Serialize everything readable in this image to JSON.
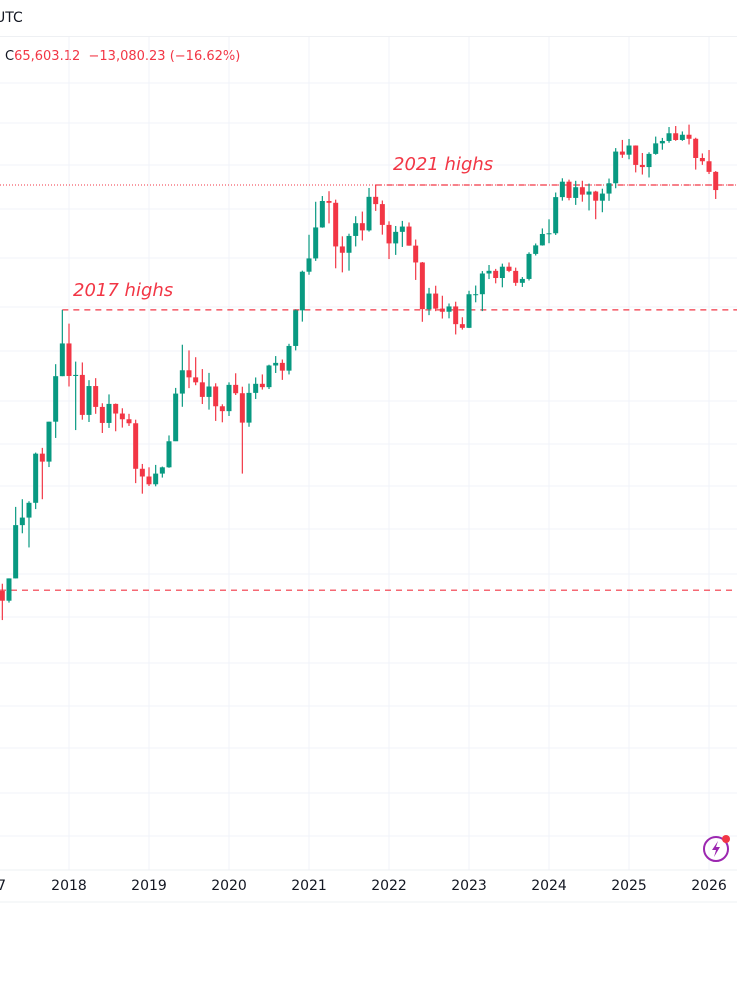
{
  "header": {
    "timezone": "UTC",
    "close_label": "C",
    "close_value": "65,603.12",
    "change": "−13,080.23",
    "change_pct": "(−16.62%)"
  },
  "colors": {
    "up": "#089981",
    "down": "#f23645",
    "annotation": "#f23645",
    "grid": "#f0f3fa",
    "icon": "#9c27b0"
  },
  "icons": {
    "bottom_right": "lightning-icon"
  },
  "chart_data": {
    "type": "candlestick",
    "interval": "monthly",
    "y_scale": "log",
    "grid": true,
    "x_tick_labels": [
      "7",
      "2018",
      "2019",
      "2020",
      "2021",
      "2022",
      "2023",
      "2024",
      "2025",
      "2026"
    ],
    "annotations": [
      {
        "text": "2017 highs",
        "level": 19800,
        "from": "2017-12"
      },
      {
        "text": "2021 highs",
        "level": 69000,
        "from": "2021-11"
      }
    ],
    "horizontal_lines": [
      {
        "level": 1200,
        "style": "dashed"
      },
      {
        "level": 69000,
        "style": "dotted"
      }
    ],
    "candles": [
      [
        "2017-03",
        1190,
        1280,
        890,
        1080
      ],
      [
        "2017-04",
        1080,
        1350,
        1060,
        1350
      ],
      [
        "2017-05",
        1350,
        2760,
        1350,
        2300
      ],
      [
        "2017-06",
        2300,
        2980,
        2120,
        2480
      ],
      [
        "2017-07",
        2480,
        2920,
        1840,
        2875
      ],
      [
        "2017-08",
        2875,
        4750,
        2700,
        4700
      ],
      [
        "2017-09",
        4700,
        4980,
        2980,
        4340
      ],
      [
        "2017-10",
        4340,
        6470,
        4110,
        6470
      ],
      [
        "2017-11",
        6470,
        11500,
        5500,
        10200
      ],
      [
        "2017-12",
        10200,
        19800,
        10200,
        14150
      ],
      [
        "2018-01",
        14150,
        17250,
        9200,
        10220
      ],
      [
        "2018-02",
        10220,
        11800,
        5950,
        10330
      ],
      [
        "2018-03",
        10330,
        11700,
        6600,
        6925
      ],
      [
        "2018-04",
        6925,
        9800,
        6450,
        9240
      ],
      [
        "2018-05",
        9240,
        10000,
        7000,
        7500
      ],
      [
        "2018-06",
        7500,
        7780,
        5780,
        6390
      ],
      [
        "2018-07",
        6390,
        8500,
        6080,
        7730
      ],
      [
        "2018-08",
        7730,
        7760,
        5880,
        7020
      ],
      [
        "2018-09",
        7020,
        7400,
        6100,
        6630
      ],
      [
        "2018-10",
        6630,
        7000,
        6200,
        6370
      ],
      [
        "2018-11",
        6370,
        6600,
        3500,
        4040
      ],
      [
        "2018-12",
        4040,
        4240,
        3150,
        3740
      ],
      [
        "2019-01",
        3740,
        4100,
        3400,
        3460
      ],
      [
        "2019-02",
        3460,
        4200,
        3390,
        3850
      ],
      [
        "2019-03",
        3850,
        4130,
        3700,
        4100
      ],
      [
        "2019-04",
        4100,
        5640,
        4080,
        5320
      ],
      [
        "2019-05",
        5320,
        9070,
        5330,
        8570
      ],
      [
        "2019-06",
        8570,
        13970,
        7510,
        10820
      ],
      [
        "2019-07",
        10820,
        13200,
        9050,
        10080
      ],
      [
        "2019-08",
        10080,
        12330,
        9320,
        9590
      ],
      [
        "2019-09",
        9590,
        10950,
        7720,
        8290
      ],
      [
        "2019-10",
        8290,
        10540,
        7300,
        9200
      ],
      [
        "2019-11",
        9200,
        9500,
        6520,
        7550
      ],
      [
        "2019-12",
        7550,
        7700,
        6430,
        7190
      ],
      [
        "2020-01",
        7190,
        9590,
        6850,
        9350
      ],
      [
        "2020-02",
        9350,
        10500,
        8450,
        8600
      ],
      [
        "2020-03",
        8600,
        9180,
        3850,
        6410
      ],
      [
        "2020-04",
        6410,
        9470,
        6150,
        8630
      ],
      [
        "2020-05",
        8630,
        10070,
        8120,
        9450
      ],
      [
        "2020-06",
        9450,
        10380,
        8920,
        9140
      ],
      [
        "2020-07",
        9140,
        11440,
        8970,
        11350
      ],
      [
        "2020-08",
        11350,
        12470,
        10530,
        11650
      ],
      [
        "2020-09",
        11650,
        12050,
        9830,
        10780
      ],
      [
        "2020-10",
        10780,
        14100,
        10380,
        13800
      ],
      [
        "2020-11",
        13800,
        19900,
        13200,
        19700
      ],
      [
        "2020-12",
        19700,
        29300,
        17600,
        28990
      ],
      [
        "2021-01",
        28990,
        41950,
        28130,
        33110
      ],
      [
        "2021-02",
        33110,
        58350,
        32300,
        45140
      ],
      [
        "2021-03",
        45140,
        61780,
        45000,
        58800
      ],
      [
        "2021-04",
        58800,
        64850,
        47000,
        57750
      ],
      [
        "2021-05",
        57750,
        59600,
        30000,
        37330
      ],
      [
        "2021-06",
        37330,
        41300,
        28800,
        35040
      ],
      [
        "2021-07",
        35040,
        42400,
        29300,
        41460
      ],
      [
        "2021-08",
        41460,
        50500,
        37330,
        47100
      ],
      [
        "2021-09",
        47100,
        52900,
        39600,
        43820
      ],
      [
        "2021-10",
        43820,
        67000,
        43300,
        61300
      ],
      [
        "2021-11",
        61300,
        69000,
        53250,
        57000
      ],
      [
        "2021-12",
        57000,
        59100,
        42000,
        46300
      ],
      [
        "2022-01",
        46300,
        47990,
        32900,
        38480
      ],
      [
        "2022-02",
        38480,
        45800,
        34300,
        43190
      ],
      [
        "2022-03",
        43190,
        48190,
        37150,
        45540
      ],
      [
        "2022-04",
        45540,
        47440,
        37600,
        37630
      ],
      [
        "2022-05",
        37630,
        40000,
        26700,
        31800
      ],
      [
        "2022-06",
        31800,
        31950,
        17570,
        19940
      ],
      [
        "2022-07",
        19940,
        24660,
        18780,
        23300
      ],
      [
        "2022-08",
        23300,
        25200,
        19540,
        20050
      ],
      [
        "2022-09",
        20050,
        22800,
        18150,
        19430
      ],
      [
        "2022-10",
        19430,
        21100,
        18190,
        20490
      ],
      [
        "2022-11",
        20490,
        21480,
        15480,
        17160
      ],
      [
        "2022-12",
        17160,
        18390,
        16250,
        16540
      ],
      [
        "2023-01",
        16540,
        23960,
        16500,
        23140
      ],
      [
        "2023-02",
        23140,
        25250,
        21350,
        23150
      ],
      [
        "2023-03",
        23150,
        29180,
        19550,
        28480
      ],
      [
        "2023-04",
        28480,
        31000,
        26940,
        29250
      ],
      [
        "2023-05",
        29250,
        29820,
        25810,
        27220
      ],
      [
        "2023-06",
        27220,
        31430,
        24800,
        30480
      ],
      [
        "2023-07",
        30480,
        31800,
        28860,
        29230
      ],
      [
        "2023-08",
        29230,
        30200,
        25170,
        25940
      ],
      [
        "2023-09",
        25940,
        27480,
        24900,
        26970
      ],
      [
        "2023-10",
        26970,
        35200,
        26550,
        34640
      ],
      [
        "2023-11",
        34640,
        38450,
        34100,
        37720
      ],
      [
        "2023-12",
        37720,
        44700,
        37630,
        42280
      ],
      [
        "2024-01",
        42280,
        48970,
        38550,
        42580
      ],
      [
        "2024-02",
        42580,
        64000,
        41880,
        61130
      ],
      [
        "2024-03",
        61130,
        73800,
        59000,
        71330
      ],
      [
        "2024-04",
        71330,
        72800,
        59200,
        60640
      ],
      [
        "2024-05",
        60640,
        71950,
        56550,
        67490
      ],
      [
        "2024-06",
        67490,
        72000,
        58400,
        62680
      ],
      [
        "2024-07",
        62680,
        70000,
        53500,
        64630
      ],
      [
        "2024-08",
        64630,
        65100,
        49000,
        58970
      ],
      [
        "2024-09",
        58970,
        66500,
        52550,
        63330
      ],
      [
        "2024-10",
        63330,
        73600,
        58900,
        70220
      ],
      [
        "2024-11",
        70220,
        99800,
        66800,
        96400
      ],
      [
        "2024-12",
        96400,
        108300,
        90500,
        93430
      ],
      [
        "2025-01",
        93430,
        109350,
        89250,
        102400
      ],
      [
        "2025-02",
        102400,
        102500,
        78250,
        84350
      ],
      [
        "2025-03",
        84350,
        95000,
        76600,
        82550
      ],
      [
        "2025-04",
        82550,
        95700,
        74400,
        94170
      ],
      [
        "2025-05",
        94170,
        111980,
        93400,
        104640
      ],
      [
        "2025-06",
        104640,
        110500,
        98200,
        107170
      ],
      [
        "2025-07",
        107170,
        123200,
        105300,
        115760
      ],
      [
        "2025-08",
        115760,
        124450,
        107300,
        108240
      ],
      [
        "2025-09",
        108240,
        117900,
        107300,
        114050
      ],
      [
        "2025-10",
        114050,
        126200,
        103500,
        109560
      ],
      [
        "2025-11",
        109560,
        110700,
        80500,
        90400
      ],
      [
        "2025-12",
        90400,
        94600,
        84400,
        87500
      ],
      [
        "2026-01",
        87500,
        97900,
        77000,
        78683.35
      ],
      [
        "2026-02",
        78683.35,
        79300,
        60000,
        65603.12
      ]
    ]
  }
}
